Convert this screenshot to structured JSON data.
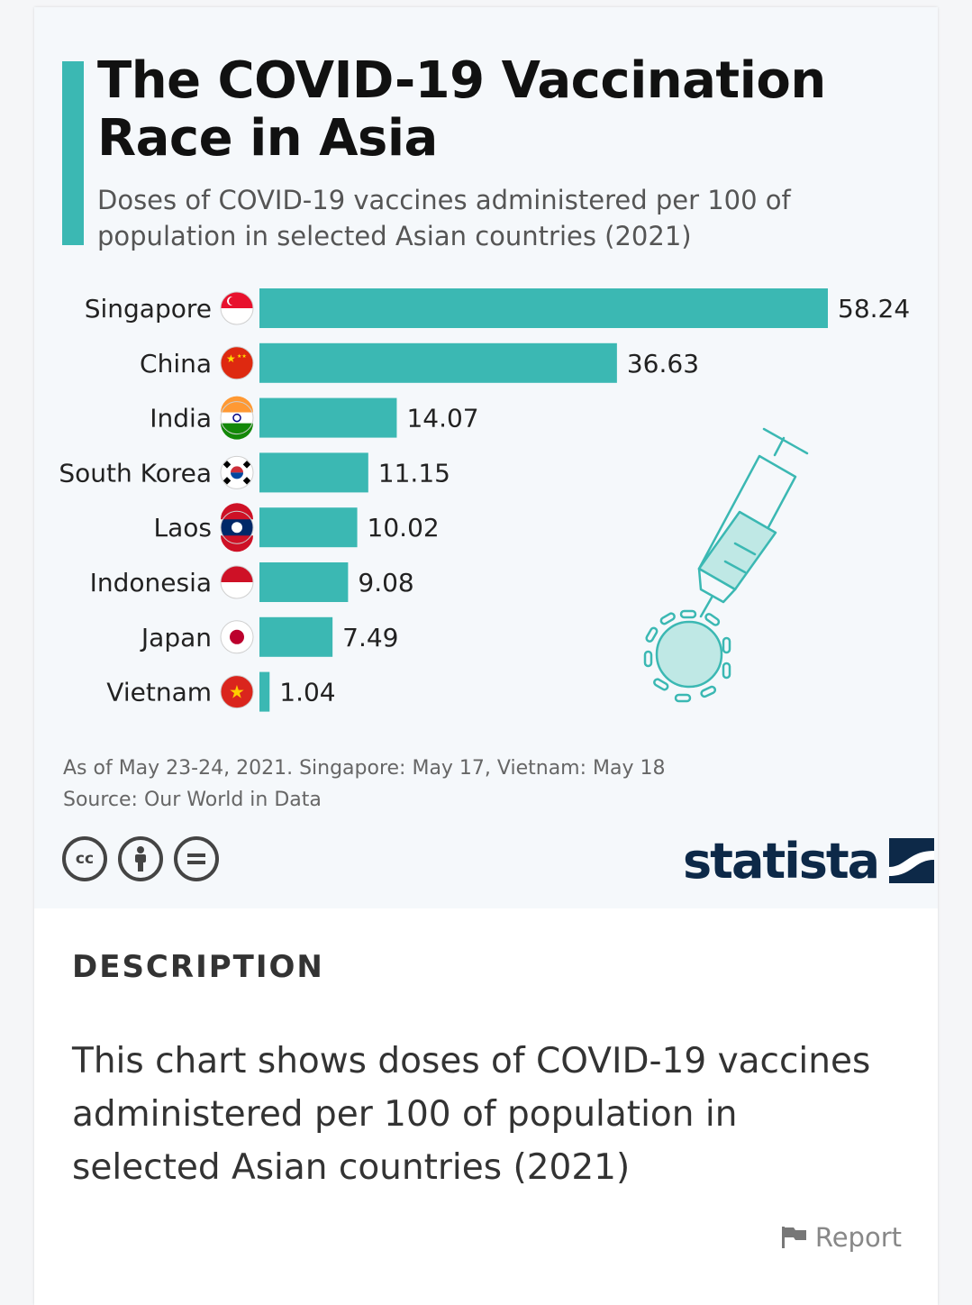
{
  "infographic": {
    "title": "The COVID-19 Vaccination Race in Asia",
    "subtitle": "Doses of COVID-19 vaccines administered per 100 of population in selected Asian countries (2021)",
    "footnote": "As of May 23-24, 2021. Singapore: May 17, Vietnam: May 18",
    "source": "Source: Our World in Data",
    "license_icons": [
      "cc-icon",
      "attribution-icon",
      "no-derivatives-icon"
    ],
    "cc_label": "cc",
    "brand": "statista",
    "accent_color": "#3bb8b3",
    "decoration": "syringe-virus-icon"
  },
  "chart_data": {
    "type": "bar",
    "orientation": "horizontal",
    "categories": [
      "Singapore",
      "China",
      "India",
      "South Korea",
      "Laos",
      "Indonesia",
      "Japan",
      "Vietnam"
    ],
    "flags": [
      "singapore-flag-icon",
      "china-flag-icon",
      "india-flag-icon",
      "south-korea-flag-icon",
      "laos-flag-icon",
      "indonesia-flag-icon",
      "japan-flag-icon",
      "vietnam-flag-icon"
    ],
    "values": [
      58.24,
      36.63,
      14.07,
      11.15,
      10.02,
      9.08,
      7.49,
      1.04
    ],
    "value_labels": [
      "58.24",
      "36.63",
      "14.07",
      "11.15",
      "10.02",
      "9.08",
      "7.49",
      "1.04"
    ],
    "bar_color": "#3bb8b3",
    "xlim": [
      0,
      58.24
    ],
    "grid": false
  },
  "description": {
    "heading": "DESCRIPTION",
    "text": "This chart shows doses of COVID-19 vaccines administered per 100 of population in selected Asian countries (2021)"
  },
  "report": {
    "label": "Report",
    "icon": "flag-icon"
  }
}
